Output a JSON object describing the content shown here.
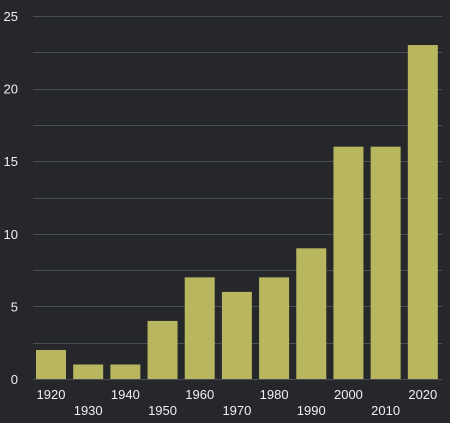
{
  "chart_data": {
    "type": "bar",
    "title": "",
    "xlabel": "",
    "ylabel": "",
    "categories": [
      "1920",
      "1930",
      "1940",
      "1950",
      "1960",
      "1970",
      "1980",
      "1990",
      "2000",
      "2010",
      "2020"
    ],
    "values": [
      2,
      1,
      1,
      4,
      7,
      6,
      7,
      9,
      16,
      16,
      23
    ],
    "ylim": [
      0,
      25
    ],
    "yticks": [
      "0",
      "5",
      "10",
      "15",
      "20",
      "25"
    ],
    "grid": true,
    "bar_color": "#b8b65e",
    "background_color": "#25272b",
    "grid_color": "#4a4d55",
    "text_color": "#f0f0f0"
  }
}
